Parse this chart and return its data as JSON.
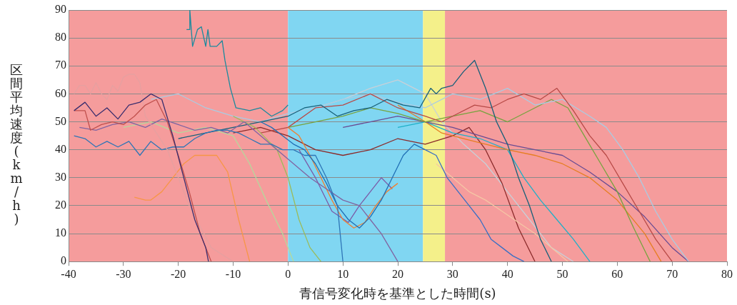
{
  "chart_data": {
    "type": "line",
    "xlabel": "青信号変化時を基準とした時間(s)",
    "ylabel": "区間平均速度(km/h)",
    "xlim": [
      -40,
      80
    ],
    "xticks": [
      -40,
      -30,
      -20,
      -10,
      0,
      10,
      20,
      30,
      40,
      50,
      60,
      70,
      80
    ],
    "ylim": [
      0,
      90
    ],
    "yticks": [
      0,
      10,
      20,
      30,
      40,
      50,
      60,
      70,
      80,
      90
    ],
    "grid": "y",
    "legend": false,
    "marker": "none",
    "line_style": "solid",
    "bands": [
      {
        "axis": "x",
        "from": -40,
        "to": 0,
        "color": "#f59c9c"
      },
      {
        "axis": "x",
        "from": 0,
        "to": 24.6,
        "color": "#80d6f2"
      },
      {
        "axis": "x",
        "from": 24.6,
        "to": 28.6,
        "color": "#f4f08a"
      },
      {
        "axis": "x",
        "from": 28.6,
        "to": 80,
        "color": "#f59c9c"
      }
    ],
    "series": [
      {
        "color": "#1b8a9e",
        "x": [
          -18.5,
          -18,
          -17.9,
          -17.4,
          -16.5,
          -15.8,
          -15,
          -14.6,
          -14.2,
          -13,
          -12,
          -11.5,
          -10.5,
          -9.5,
          -7,
          -5,
          -3,
          -1,
          0
        ],
        "values": [
          83,
          83,
          90,
          77,
          83,
          84,
          77,
          83,
          77,
          77,
          79,
          72,
          62,
          55,
          54,
          55,
          52,
          54,
          56
        ]
      },
      {
        "color": "#3b2e6e",
        "x": [
          -39,
          -37,
          -35,
          -33,
          -31,
          -29,
          -27,
          -25,
          -23,
          -21,
          -19,
          -17,
          -15,
          -14.5
        ],
        "values": [
          54,
          57,
          52,
          55,
          51,
          56,
          57,
          60,
          58,
          45,
          30,
          15,
          5,
          0
        ]
      },
      {
        "color": "#c0504d",
        "x": [
          -39,
          -37,
          -36,
          -34,
          -32,
          -30,
          -28,
          -26,
          -24,
          -22,
          -20,
          -18,
          -16,
          -14
        ],
        "values": [
          54,
          54,
          47,
          49,
          50,
          49,
          52,
          56,
          58,
          50,
          38,
          25,
          10,
          0
        ]
      },
      {
        "color": "#e6a0a0",
        "x": [
          -39,
          -38,
          -37,
          -36,
          -35,
          -34,
          -33,
          -32,
          -31,
          -30,
          -29,
          -28,
          -27,
          -26,
          -22,
          -18,
          -14,
          -10
        ],
        "values": [
          60,
          63,
          63,
          60,
          64,
          60,
          58,
          63,
          61,
          66,
          67,
          67,
          64,
          52,
          40,
          20,
          5,
          0
        ]
      },
      {
        "color": "#f79646",
        "x": [
          -28,
          -26,
          -25,
          -23,
          -21,
          -19,
          -17,
          -15,
          -13,
          -11,
          -9,
          -7
        ],
        "values": [
          23,
          22,
          22,
          25,
          30,
          35,
          38,
          38,
          38,
          32,
          15,
          0
        ]
      },
      {
        "color": "#2e75b6",
        "x": [
          -39,
          -37,
          -35,
          -33,
          -31,
          -29,
          -27,
          -25,
          -23,
          -21,
          -19,
          -17,
          -15,
          -13,
          -11,
          -9,
          -7,
          -5,
          -3,
          -1,
          1,
          3,
          5,
          7,
          9,
          10
        ],
        "values": [
          45,
          44,
          41,
          43,
          41,
          43,
          38,
          43,
          40,
          41,
          41,
          44,
          46,
          47,
          47,
          46,
          44,
          42,
          42,
          40,
          40,
          38,
          38,
          30,
          20,
          0
        ]
      },
      {
        "color": "#8064a2",
        "x": [
          -38,
          -35,
          -32,
          -29,
          -26,
          -23,
          -20,
          -17,
          -14,
          -11,
          -8,
          -5,
          -2,
          1,
          4,
          7,
          10,
          13,
          15,
          17,
          20
        ],
        "values": [
          48,
          47,
          49,
          50,
          48,
          51,
          49,
          47,
          48,
          46,
          50,
          45,
          40,
          35,
          30,
          26,
          22,
          20,
          15,
          10,
          0
        ]
      },
      {
        "color": "#1f6fb5",
        "x": [
          -5,
          -3,
          -1,
          1,
          3,
          5,
          7,
          9,
          11,
          13,
          15,
          17,
          19,
          21,
          23,
          25
        ],
        "values": [
          50,
          48,
          45,
          42,
          40,
          35,
          28,
          20,
          15,
          12,
          16,
          22,
          30,
          38,
          42,
          40
        ]
      },
      {
        "color": "#f08030",
        "x": [
          0,
          2,
          4,
          6,
          8,
          10,
          12,
          14,
          16,
          18,
          20
        ],
        "values": [
          48,
          45,
          38,
          30,
          22,
          15,
          12,
          14,
          20,
          25,
          28
        ]
      },
      {
        "color": "#7b5ca8",
        "x": [
          2,
          5,
          8,
          11,
          13,
          15,
          17,
          19
        ],
        "values": [
          40,
          30,
          18,
          14,
          20,
          25,
          30,
          26
        ]
      },
      {
        "color": "#9bbb59",
        "x": [
          -10,
          -6,
          -2,
          0,
          2,
          4,
          6
        ],
        "values": [
          52,
          48,
          40,
          30,
          15,
          5,
          0
        ]
      },
      {
        "color": "#17607a",
        "x": [
          -20,
          -15,
          -10,
          -5,
          0,
          3,
          6,
          9,
          12,
          15,
          18,
          21,
          24,
          26,
          27,
          28,
          30,
          32,
          34,
          36,
          38,
          40,
          42,
          44,
          46,
          48
        ],
        "values": [
          44,
          46,
          48,
          50,
          52,
          55,
          56,
          52,
          54,
          55,
          58,
          56,
          55,
          62,
          60,
          62,
          63,
          68,
          72,
          62,
          50,
          42,
          30,
          20,
          8,
          0
        ]
      },
      {
        "color": "#b84a47",
        "x": [
          -5,
          0,
          5,
          10,
          15,
          20,
          25,
          28,
          31,
          34,
          37,
          40,
          43,
          46,
          49,
          52,
          55,
          58,
          61,
          64,
          67,
          70
        ],
        "values": [
          46,
          48,
          55,
          56,
          60,
          55,
          52,
          50,
          53,
          56,
          55,
          58,
          60,
          58,
          62,
          54,
          45,
          38,
          28,
          18,
          8,
          0
        ]
      },
      {
        "color": "#a9cce3",
        "x": [
          -25,
          -20,
          -15,
          -10,
          -5,
          0,
          5,
          10,
          15,
          20,
          25,
          30,
          35,
          40,
          45,
          50,
          55,
          58,
          61,
          64,
          67,
          70,
          73
        ],
        "values": [
          58,
          60,
          55,
          52,
          50,
          53,
          55,
          58,
          60,
          57,
          55,
          60,
          58,
          62,
          56,
          58,
          52,
          48,
          40,
          30,
          18,
          8,
          0
        ]
      },
      {
        "color": "#77a33e",
        "x": [
          0,
          5,
          10,
          15,
          20,
          25,
          30,
          35,
          40,
          45,
          48,
          51,
          54,
          57,
          60,
          63,
          66
        ],
        "values": [
          48,
          50,
          52,
          55,
          53,
          50,
          52,
          54,
          50,
          55,
          58,
          55,
          45,
          35,
          25,
          12,
          0
        ]
      },
      {
        "color": "#6a4c93",
        "x": [
          10,
          15,
          20,
          25,
          30,
          35,
          40,
          45,
          50,
          55,
          60,
          65,
          70,
          73
        ],
        "values": [
          48,
          50,
          52,
          50,
          48,
          45,
          42,
          40,
          38,
          32,
          25,
          16,
          5,
          0
        ]
      },
      {
        "color": "#e67e22",
        "x": [
          20,
          25,
          28,
          32,
          36,
          40,
          45,
          50,
          55,
          60,
          65,
          68
        ],
        "values": [
          56,
          50,
          46,
          44,
          42,
          40,
          38,
          35,
          30,
          22,
          10,
          0
        ]
      },
      {
        "color": "#3a6fc4",
        "x": [
          25,
          27,
          29,
          31,
          33,
          35,
          37,
          39,
          41,
          43
        ],
        "values": [
          40,
          38,
          30,
          25,
          20,
          15,
          8,
          5,
          2,
          0
        ]
      },
      {
        "color": "#1fb0c8",
        "x": [
          20,
          25,
          30,
          35,
          40,
          43,
          46,
          49,
          52,
          55
        ],
        "values": [
          48,
          50,
          46,
          44,
          40,
          30,
          22,
          15,
          8,
          0
        ]
      },
      {
        "color": "#f5c6a5",
        "x": [
          27,
          30,
          33,
          36,
          39,
          42,
          45,
          48,
          51
        ],
        "values": [
          35,
          30,
          25,
          22,
          18,
          14,
          10,
          5,
          0
        ]
      },
      {
        "color": "#8b2b2b",
        "x": [
          -10,
          -5,
          0,
          5,
          10,
          15,
          20,
          25,
          30,
          33,
          36,
          39,
          42,
          45
        ],
        "values": [
          46,
          48,
          45,
          40,
          38,
          40,
          44,
          42,
          45,
          48,
          40,
          28,
          12,
          0
        ]
      },
      {
        "color": "#b5d99c",
        "x": [
          -30,
          -25,
          -20,
          -15,
          -10,
          -7,
          -4,
          -1,
          1
        ],
        "values": [
          48,
          50,
          46,
          48,
          45,
          35,
          22,
          10,
          0
        ]
      },
      {
        "color": "#c8d0d8",
        "x": [
          5,
          10,
          15,
          20,
          25,
          28,
          32,
          36,
          40,
          44,
          48,
          52
        ],
        "values": [
          55,
          58,
          62,
          65,
          60,
          50,
          42,
          35,
          25,
          15,
          5,
          0
        ]
      }
    ]
  }
}
